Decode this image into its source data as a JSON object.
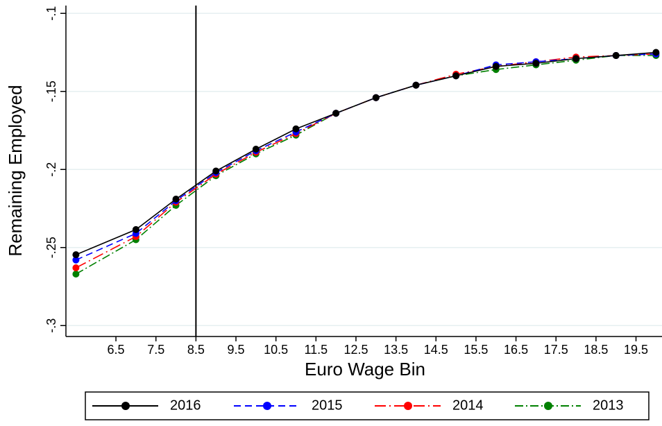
{
  "chart_data": {
    "type": "line",
    "x_label": "Euro Wage Bin",
    "y_label": "Remaining Employed",
    "x": [
      5.5,
      7,
      8,
      9,
      10,
      11,
      12,
      13,
      14,
      15,
      16,
      17,
      18,
      19,
      20
    ],
    "series": [
      {
        "name": "2016",
        "color": "#000000",
        "dash": "solid",
        "values": [
          -0.2546,
          -0.2385,
          -0.219,
          -0.201,
          -0.187,
          -0.174,
          -0.164,
          -0.154,
          -0.146,
          -0.14,
          -0.134,
          -0.132,
          -0.129,
          -0.127,
          -0.125
        ]
      },
      {
        "name": "2015",
        "color": "#0000ff",
        "dash": "dash",
        "values": [
          -0.258,
          -0.241,
          -0.22,
          -0.202,
          -0.188,
          -0.176,
          -0.164,
          -0.154,
          -0.146,
          -0.14,
          -0.133,
          -0.131,
          -0.129,
          -0.127,
          -0.126
        ]
      },
      {
        "name": "2014",
        "color": "#ff0000",
        "dash": "longdash-dot",
        "values": [
          -0.263,
          -0.243,
          -0.221,
          -0.203,
          -0.189,
          -0.177,
          -0.164,
          -0.154,
          -0.146,
          -0.139,
          -0.134,
          -0.131,
          -0.128,
          -0.127,
          -0.126
        ]
      },
      {
        "name": "2013",
        "color": "#008000",
        "dash": "dash-dot",
        "values": [
          -0.267,
          -0.245,
          -0.223,
          -0.204,
          -0.19,
          -0.178,
          -0.164,
          -0.154,
          -0.146,
          -0.14,
          -0.136,
          -0.133,
          -0.13,
          -0.127,
          -0.127
        ]
      }
    ],
    "xlim": [
      5.25,
      20.15
    ],
    "ylim": [
      -0.307,
      -0.095
    ],
    "xticks": [
      6.5,
      7.5,
      8.5,
      9.5,
      10.5,
      11.5,
      12.5,
      13.5,
      14.5,
      15.5,
      16.5,
      17.5,
      18.5,
      19.5
    ],
    "yticks": [
      {
        "value": -0.3,
        "label": "-.3"
      },
      {
        "value": -0.25,
        "label": "-.25"
      },
      {
        "value": -0.2,
        "label": "-.2"
      },
      {
        "value": -0.15,
        "label": "-.15"
      },
      {
        "value": -0.1,
        "label": "-.1"
      }
    ],
    "vline": 8.5,
    "grid": true,
    "legend": "bottom"
  }
}
